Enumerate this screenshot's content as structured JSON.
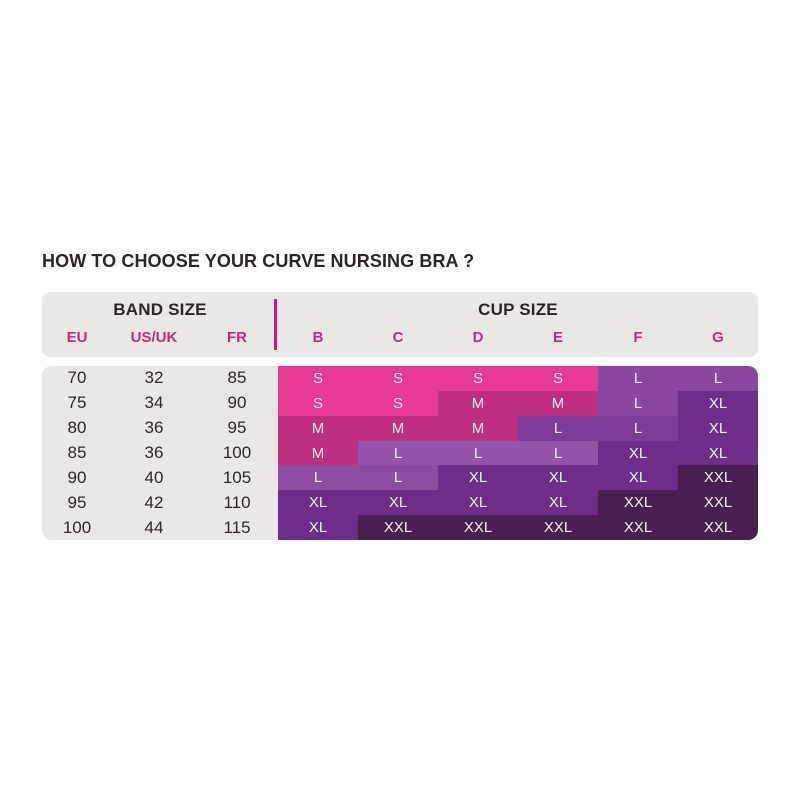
{
  "page": {
    "title": "HOW TO CHOOSE YOUR CURVE NURSING BRA ?"
  },
  "table": {
    "band_size_label": "BAND SIZE",
    "cup_size_label": "CUP SIZE",
    "band_columns": [
      "EU",
      "US/UK",
      "FR"
    ],
    "cup_columns": [
      "B",
      "C",
      "D",
      "E",
      "F",
      "G"
    ],
    "rows": [
      {
        "band": [
          "70",
          "32",
          "85"
        ],
        "cups": [
          {
            "label": "S",
            "shade": "s"
          },
          {
            "label": "S",
            "shade": "s"
          },
          {
            "label": "S",
            "shade": "s"
          },
          {
            "label": "S",
            "shade": "s"
          },
          {
            "label": "L",
            "shade": "l1"
          },
          {
            "label": "L",
            "shade": "l1"
          }
        ]
      },
      {
        "band": [
          "75",
          "34",
          "90"
        ],
        "cups": [
          {
            "label": "S",
            "shade": "s"
          },
          {
            "label": "S",
            "shade": "s"
          },
          {
            "label": "M",
            "shade": "m"
          },
          {
            "label": "M",
            "shade": "m"
          },
          {
            "label": "L",
            "shade": "l1"
          },
          {
            "label": "XL",
            "shade": "xl"
          }
        ]
      },
      {
        "band": [
          "80",
          "36",
          "95"
        ],
        "cups": [
          {
            "label": "M",
            "shade": "m"
          },
          {
            "label": "M",
            "shade": "m"
          },
          {
            "label": "M",
            "shade": "m"
          },
          {
            "label": "L",
            "shade": "l2"
          },
          {
            "label": "L",
            "shade": "l2"
          },
          {
            "label": "XL",
            "shade": "xl"
          }
        ]
      },
      {
        "band": [
          "85",
          "36",
          "100"
        ],
        "cups": [
          {
            "label": "M",
            "shade": "m"
          },
          {
            "label": "L",
            "shade": "l3"
          },
          {
            "label": "L",
            "shade": "l3"
          },
          {
            "label": "L",
            "shade": "l3"
          },
          {
            "label": "XL",
            "shade": "xl"
          },
          {
            "label": "XL",
            "shade": "xl"
          }
        ]
      },
      {
        "band": [
          "90",
          "40",
          "105"
        ],
        "cups": [
          {
            "label": "L",
            "shade": "l4"
          },
          {
            "label": "L",
            "shade": "l4"
          },
          {
            "label": "XL",
            "shade": "xl"
          },
          {
            "label": "XL",
            "shade": "xl"
          },
          {
            "label": "XL",
            "shade": "xl"
          },
          {
            "label": "XXL",
            "shade": "xxl"
          }
        ]
      },
      {
        "band": [
          "95",
          "42",
          "110"
        ],
        "cups": [
          {
            "label": "XL",
            "shade": "xl"
          },
          {
            "label": "XL",
            "shade": "xl"
          },
          {
            "label": "XL",
            "shade": "xl"
          },
          {
            "label": "XL",
            "shade": "xl"
          },
          {
            "label": "XXL",
            "shade": "xxl"
          },
          {
            "label": "XXL",
            "shade": "xxl"
          }
        ]
      },
      {
        "band": [
          "100",
          "44",
          "115"
        ],
        "cups": [
          {
            "label": "XL",
            "shade": "xl"
          },
          {
            "label": "XXL",
            "shade": "xxl"
          },
          {
            "label": "XXL",
            "shade": "xxl"
          },
          {
            "label": "XXL",
            "shade": "xxl"
          },
          {
            "label": "XXL",
            "shade": "xxl"
          },
          {
            "label": "XXL",
            "shade": "xxl"
          }
        ]
      }
    ]
  },
  "colors": {
    "s": "#E53B94",
    "m": "#BF2F80",
    "l1": "#8A47A2",
    "l2": "#7C3C97",
    "l3": "#9254A8",
    "l4": "#8C4CA0",
    "xl": "#6C2E88",
    "xxl": "#471F51",
    "panel_bg": "#EAE8E6",
    "title_text": "#2A2627",
    "pink_label": "#C32A7C",
    "divider": "#D6147F",
    "cell_text": "#F6EFF5",
    "number_text": "#2C2829"
  }
}
